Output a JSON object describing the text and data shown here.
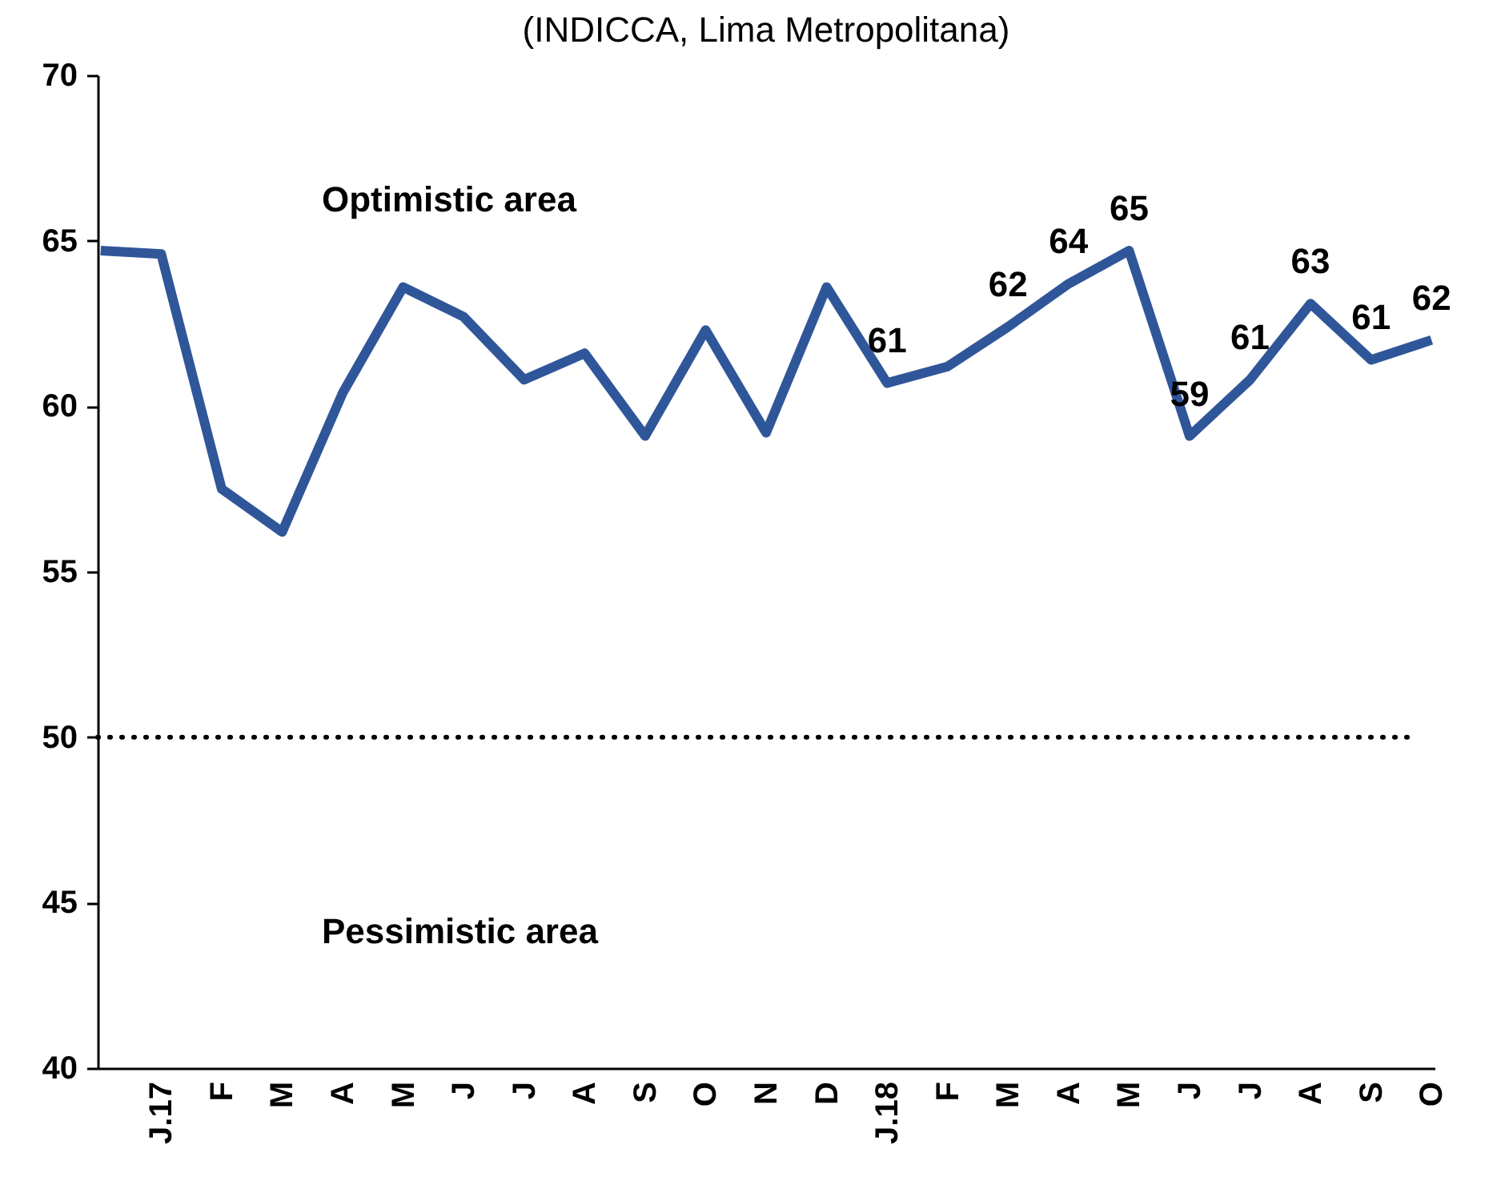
{
  "chart_data": {
    "type": "line",
    "title": "(INDICCA, Lima Metropolitana)",
    "categories": [
      null,
      "J.17",
      "F",
      "M",
      "A",
      "M",
      "J",
      "J",
      "A",
      "S",
      "O",
      "N",
      "D",
      "J.18",
      "F",
      "M",
      "A",
      "M",
      "J",
      "J",
      "A",
      "S",
      "O"
    ],
    "series": [
      {
        "color": "#30569a",
        "values": [
          64.7,
          64.6,
          57.5,
          56.2,
          60.4,
          63.6,
          62.7,
          60.8,
          61.6,
          59.1,
          62.3,
          59.2,
          63.6,
          60.7,
          61.2,
          62.4,
          63.7,
          64.7,
          59.1,
          60.8,
          63.1,
          61.4,
          62.0
        ],
        "value_labels": [
          null,
          null,
          null,
          null,
          null,
          null,
          null,
          null,
          null,
          null,
          null,
          null,
          null,
          "61",
          null,
          "62",
          "64",
          "65",
          "59",
          "61",
          "63",
          "61",
          "62"
        ]
      }
    ],
    "ylim": [
      40,
      70
    ],
    "yticks": [
      40,
      45,
      50,
      55,
      60,
      65,
      70
    ],
    "grid": false,
    "marker": "none",
    "line_style": "solid",
    "ref_lines": [
      {
        "axis": "y",
        "value": 50,
        "line_style": "dotted"
      }
    ],
    "annotations": [
      "Optimistic area",
      "Pessimistic area"
    ]
  }
}
